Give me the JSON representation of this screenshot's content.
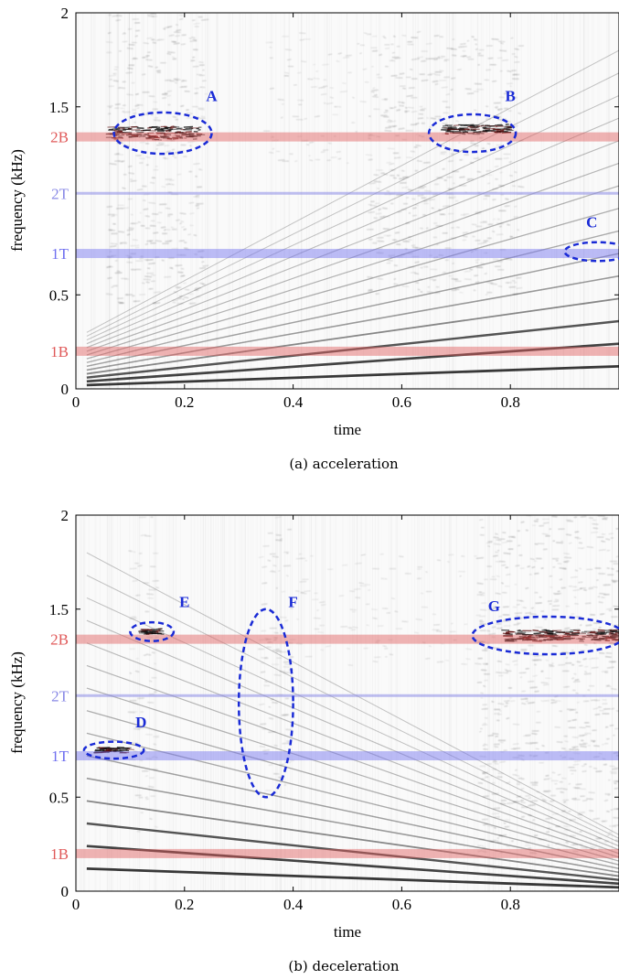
{
  "chart_data": [
    {
      "type": "heatmap",
      "title": "",
      "caption": "(a) acceleration",
      "xlabel": "time",
      "ylabel": "frequency (kHz)",
      "xlim": [
        0,
        1
      ],
      "ylim": [
        0,
        2
      ],
      "x_ticks": [
        0,
        0.2,
        0.4,
        0.6,
        0.8
      ],
      "x_tick_labels": [
        "0",
        "0.2",
        "0.4",
        "0.6",
        "0.8"
      ],
      "y_ticks": [
        0,
        0.5,
        1.5,
        2
      ],
      "y_tick_labels": [
        "0",
        "0.5",
        "1.5",
        "2"
      ],
      "reference_lines": [
        {
          "label": "2B",
          "y": 1.34,
          "color": "#e05a5a",
          "band": "thick"
        },
        {
          "label": "2T",
          "y": 1.04,
          "color": "#8a8ae6",
          "band": "thin"
        },
        {
          "label": "1T",
          "y": 0.72,
          "color": "#6f6ff0",
          "band": "thick"
        },
        {
          "label": "1B",
          "y": 0.2,
          "color": "#e05a5a",
          "band": "thick"
        }
      ],
      "harmonics": [
        {
          "y0": 0.02,
          "y1": 0.12,
          "strength": 0.9
        },
        {
          "y0": 0.04,
          "y1": 0.24,
          "strength": 0.85
        },
        {
          "y0": 0.06,
          "y1": 0.36,
          "strength": 0.75
        },
        {
          "y0": 0.08,
          "y1": 0.48,
          "strength": 0.45
        },
        {
          "y0": 0.1,
          "y1": 0.6,
          "strength": 0.35
        },
        {
          "y0": 0.12,
          "y1": 0.72,
          "strength": 0.3
        },
        {
          "y0": 0.14,
          "y1": 0.84,
          "strength": 0.25
        },
        {
          "y0": 0.16,
          "y1": 0.96,
          "strength": 0.22
        },
        {
          "y0": 0.18,
          "y1": 1.08,
          "strength": 0.2
        },
        {
          "y0": 0.2,
          "y1": 1.2,
          "strength": 0.18
        },
        {
          "y0": 0.22,
          "y1": 1.32,
          "strength": 0.16
        },
        {
          "y0": 0.24,
          "y1": 1.44,
          "strength": 0.14
        },
        {
          "y0": 0.26,
          "y1": 1.56,
          "strength": 0.12
        },
        {
          "y0": 0.28,
          "y1": 1.68,
          "strength": 0.11
        },
        {
          "y0": 0.3,
          "y1": 1.8,
          "strength": 0.1
        }
      ],
      "noise_regions": [
        {
          "x0": 0.06,
          "x1": 0.24,
          "y0": 0.45,
          "y1": 2.0,
          "density": 0.55
        },
        {
          "x0": 0.54,
          "x1": 0.82,
          "y0": 0.5,
          "y1": 1.9,
          "density": 0.5
        },
        {
          "x0": 0.35,
          "x1": 0.55,
          "y0": 1.2,
          "y1": 1.9,
          "density": 0.25
        }
      ],
      "dark_bands": [
        {
          "x0": 0.06,
          "x1": 0.23,
          "y": 1.36,
          "height": 0.07
        },
        {
          "x0": 0.68,
          "x1": 0.8,
          "y": 1.38,
          "height": 0.05
        }
      ],
      "annotations": [
        {
          "label": "A",
          "cx": 0.16,
          "cy": 1.36,
          "rx": 0.09,
          "ry": 0.11,
          "label_x": 0.25,
          "label_y": 1.53
        },
        {
          "label": "B",
          "cx": 0.73,
          "cy": 1.36,
          "rx": 0.08,
          "ry": 0.1,
          "label_x": 0.8,
          "label_y": 1.53
        },
        {
          "label": "C",
          "cx": 0.96,
          "cy": 0.73,
          "rx": 0.06,
          "ry": 0.05,
          "label_x": 0.95,
          "label_y": 0.86
        }
      ]
    },
    {
      "type": "heatmap",
      "title": "",
      "caption": "(b) deceleration",
      "xlabel": "time",
      "ylabel": "frequency (kHz)",
      "xlim": [
        0,
        1
      ],
      "ylim": [
        0,
        2
      ],
      "x_ticks": [
        0,
        0.2,
        0.4,
        0.6,
        0.8
      ],
      "x_tick_labels": [
        "0",
        "0.2",
        "0.4",
        "0.6",
        "0.8"
      ],
      "y_ticks": [
        0,
        0.5,
        1.5,
        2
      ],
      "y_tick_labels": [
        "0",
        "0.5",
        "1.5",
        "2"
      ],
      "reference_lines": [
        {
          "label": "2B",
          "y": 1.34,
          "color": "#e05a5a",
          "band": "thick"
        },
        {
          "label": "2T",
          "y": 1.04,
          "color": "#8a8ae6",
          "band": "thin"
        },
        {
          "label": "1T",
          "y": 0.72,
          "color": "#6f6ff0",
          "band": "thick"
        },
        {
          "label": "1B",
          "y": 0.2,
          "color": "#e05a5a",
          "band": "thick"
        }
      ],
      "harmonics": [
        {
          "y0": 0.12,
          "y1": 0.02,
          "strength": 0.9
        },
        {
          "y0": 0.24,
          "y1": 0.04,
          "strength": 0.85
        },
        {
          "y0": 0.36,
          "y1": 0.06,
          "strength": 0.75
        },
        {
          "y0": 0.48,
          "y1": 0.08,
          "strength": 0.45
        },
        {
          "y0": 0.6,
          "y1": 0.1,
          "strength": 0.35
        },
        {
          "y0": 0.72,
          "y1": 0.12,
          "strength": 0.3
        },
        {
          "y0": 0.84,
          "y1": 0.14,
          "strength": 0.25
        },
        {
          "y0": 0.96,
          "y1": 0.16,
          "strength": 0.22
        },
        {
          "y0": 1.08,
          "y1": 0.18,
          "strength": 0.2
        },
        {
          "y0": 1.2,
          "y1": 0.2,
          "strength": 0.18
        },
        {
          "y0": 1.32,
          "y1": 0.22,
          "strength": 0.16
        },
        {
          "y0": 1.44,
          "y1": 0.24,
          "strength": 0.14
        },
        {
          "y0": 1.56,
          "y1": 0.26,
          "strength": 0.12
        },
        {
          "y0": 1.68,
          "y1": 0.28,
          "strength": 0.11
        },
        {
          "y0": 1.8,
          "y1": 0.3,
          "strength": 0.1
        }
      ],
      "noise_regions": [
        {
          "x0": 0.1,
          "x1": 0.15,
          "y0": 0.3,
          "y1": 2.0,
          "density": 0.35
        },
        {
          "x0": 0.34,
          "x1": 0.4,
          "y0": 0.5,
          "y1": 2.0,
          "density": 0.4
        },
        {
          "x0": 0.74,
          "x1": 1.0,
          "y0": 0.2,
          "y1": 2.0,
          "density": 0.55
        },
        {
          "x0": 0.4,
          "x1": 0.74,
          "y0": 1.2,
          "y1": 1.8,
          "density": 0.2
        }
      ],
      "dark_bands": [
        {
          "x0": 0.79,
          "x1": 1.0,
          "y": 1.36,
          "height": 0.06
        },
        {
          "x0": 0.12,
          "x1": 0.16,
          "y": 1.38,
          "height": 0.03
        },
        {
          "x0": 0.04,
          "x1": 0.1,
          "y": 0.75,
          "height": 0.03
        }
      ],
      "annotations": [
        {
          "label": "D",
          "cx": 0.07,
          "cy": 0.75,
          "rx": 0.055,
          "ry": 0.045,
          "label_x": 0.12,
          "label_y": 0.87
        },
        {
          "label": "E",
          "cx": 0.14,
          "cy": 1.38,
          "rx": 0.04,
          "ry": 0.05,
          "label_x": 0.2,
          "label_y": 1.51
        },
        {
          "label": "F",
          "cx": 0.35,
          "cy": 1.0,
          "rx": 0.05,
          "ry": 0.5,
          "label_x": 0.4,
          "label_y": 1.51
        },
        {
          "label": "G",
          "cx": 0.87,
          "cy": 1.36,
          "rx": 0.14,
          "ry": 0.1,
          "label_x": 0.77,
          "label_y": 1.49
        }
      ]
    }
  ]
}
